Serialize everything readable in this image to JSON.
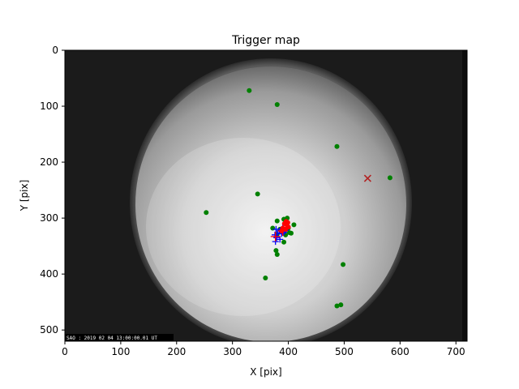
{
  "chart_data": {
    "type": "scatter",
    "title": "Trigger map",
    "xlabel": "X [pix]",
    "ylabel": "Y [pix]",
    "xlim": [
      0,
      720
    ],
    "ylim": [
      0,
      520
    ],
    "y_inverted": true,
    "x_ticks": [
      0,
      100,
      200,
      300,
      400,
      500,
      600,
      700
    ],
    "y_ticks": [
      0,
      100,
      200,
      300,
      400,
      500
    ],
    "grid": false,
    "background": "grayscale all-sky camera image",
    "image_stamp": "SAO : 2019 02 04 13:00:00.01 UT",
    "series": [
      {
        "marker": "green-dot",
        "color": "#008000",
        "points": [
          [
            330,
            72
          ],
          [
            380,
            97
          ],
          [
            487,
            172
          ],
          [
            345,
            257
          ],
          [
            253,
            290
          ],
          [
            582,
            228
          ],
          [
            380,
            305
          ],
          [
            392,
            302
          ],
          [
            398,
            300
          ],
          [
            410,
            312
          ],
          [
            372,
            318
          ],
          [
            385,
            320
          ],
          [
            400,
            318
          ],
          [
            402,
            326
          ],
          [
            395,
            330
          ],
          [
            405,
            327
          ],
          [
            380,
            329
          ],
          [
            392,
            343
          ],
          [
            378,
            358
          ],
          [
            380,
            365
          ],
          [
            359,
            407
          ],
          [
            498,
            383
          ],
          [
            487,
            457
          ],
          [
            494,
            455
          ]
        ]
      },
      {
        "marker": "blue-plus",
        "color": "#0000ff",
        "points": [
          [
            378,
            320
          ],
          [
            384,
            323
          ],
          [
            390,
            318
          ],
          [
            395,
            322
          ],
          [
            381,
            327
          ],
          [
            376,
            330
          ],
          [
            388,
            328
          ],
          [
            379,
            335
          ],
          [
            385,
            338
          ],
          [
            392,
            325
          ],
          [
            397,
            318
          ],
          [
            377,
            342
          ]
        ]
      },
      {
        "marker": "red-dot",
        "color": "#ff0000",
        "points": [
          [
            393,
            310
          ],
          [
            397,
            312
          ],
          [
            399,
            308
          ],
          [
            390,
            318
          ],
          [
            395,
            320
          ],
          [
            388,
            323
          ],
          [
            400,
            316
          ],
          [
            396,
            306
          ]
        ]
      },
      {
        "marker": "red-plus",
        "color": "#ff0000",
        "points": [
          [
            377,
            333
          ],
          [
            390,
            323
          ]
        ]
      },
      {
        "marker": "red-x",
        "color": "#b22222",
        "points": [
          [
            542,
            229
          ]
        ]
      }
    ]
  }
}
